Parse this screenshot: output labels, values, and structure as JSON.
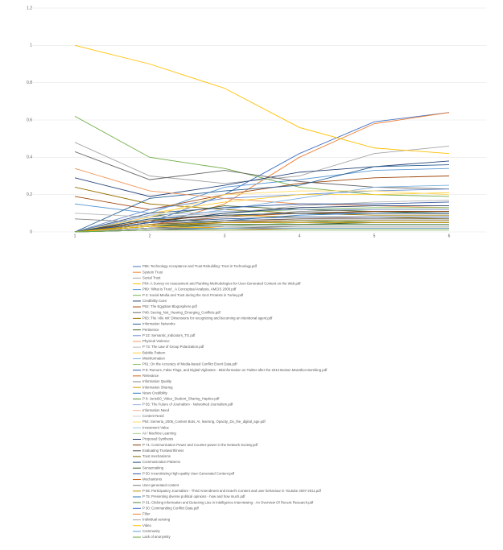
{
  "chart_data": {
    "type": "line",
    "grid": true,
    "categories": [
      "1",
      "2",
      "3",
      "4",
      "5",
      "6"
    ],
    "ylim": [
      0,
      1.2
    ],
    "yticks": [
      0,
      0.2,
      0.4,
      0.6,
      0.8,
      1,
      1.2
    ],
    "legend": "bottom",
    "series": [
      {
        "name": "P86: Technology Acceptance and Trust Rebuilding: Trust in Technology.pdf",
        "color": "#4472c4",
        "values": [
          0,
          0.05,
          0.2,
          0.42,
          0.59,
          0.64
        ]
      },
      {
        "name": "System Trust",
        "color": "#ed7d31",
        "values": [
          0,
          0.03,
          0.15,
          0.4,
          0.58,
          0.64
        ]
      },
      {
        "name": "Social Trust",
        "color": "#a5a5a5",
        "values": [
          0.48,
          0.3,
          0.26,
          0.3,
          0.42,
          0.46
        ]
      },
      {
        "name": "P64: A Survey on Assessment and Ranking Methodologies for User-Generated Content on the Web.pdf",
        "color": "#ffc000",
        "values": [
          1,
          0.9,
          0.77,
          0.56,
          0.45,
          0.42
        ]
      },
      {
        "name": "P89: 'What is Trust'_ A Conceptual Analysis, AMCIS 2000.pdf",
        "color": "#5b9bd5",
        "values": [
          0.15,
          0.1,
          0.24,
          0.28,
          0.33,
          0.34
        ]
      },
      {
        "name": "P 3: Social Media and Trust during the Gezi Protests in Turkey.pdf",
        "color": "#70ad47",
        "values": [
          0.62,
          0.4,
          0.34,
          0.24,
          0.2,
          0.19
        ]
      },
      {
        "name": "Credibility Cues",
        "color": "#264478",
        "values": [
          0.29,
          0.19,
          0.25,
          0.32,
          0.35,
          0.38
        ]
      },
      {
        "name": "P52: The Egyptian Blogosphere.pdf",
        "color": "#9e480e",
        "values": [
          0.19,
          0.12,
          0.2,
          0.26,
          0.29,
          0.3
        ]
      },
      {
        "name": "P48: Seeing_Not_Hearing_Emerging_Conflicts.pdf",
        "color": "#636363",
        "values": [
          0.43,
          0.28,
          0.33,
          0.27,
          0.24,
          0.23
        ]
      },
      {
        "name": "P83: The 'Alle mit' Dimensions for recognizing and becoming an intentional agent.pdf",
        "color": "#997300",
        "values": [
          0.24,
          0.15,
          0.12,
          0.1,
          0.09,
          0.09
        ]
      },
      {
        "name": "Information Networks",
        "color": "#255e91",
        "values": [
          0,
          0.18,
          0.22,
          0.25,
          0.35,
          0.36
        ]
      },
      {
        "name": "Pertinence",
        "color": "#43682b",
        "values": [
          0,
          0.08,
          0.14,
          0.12,
          0.11,
          0.1
        ]
      },
      {
        "name": "P 22: Semantic_indicators_TG.pdf",
        "color": "#698ed0",
        "values": [
          0,
          0.12,
          0.18,
          0.2,
          0.22,
          0.23
        ]
      },
      {
        "name": "Physical Violence",
        "color": "#f1975a",
        "values": [
          0.34,
          0.22,
          0.18,
          0.15,
          0.14,
          0.13
        ]
      },
      {
        "name": "P 73: The Law of Group Polarization.pdf",
        "color": "#b7b7b7",
        "values": [
          0.1,
          0.08,
          0.1,
          0.14,
          0.16,
          0.17
        ]
      },
      {
        "name": "Bubble Pattern",
        "color": "#ffcd33",
        "values": [
          0,
          0.1,
          0.16,
          0.2,
          0.2,
          0.21
        ]
      },
      {
        "name": "Misinformation",
        "color": "#7cafdd",
        "values": [
          0,
          0.06,
          0.12,
          0.18,
          0.24,
          0.25
        ]
      },
      {
        "name": "P61: On the Accuracy of Media-based Conflict Event Data.pdf",
        "color": "#8cc168",
        "values": [
          0,
          0.05,
          0.1,
          0.12,
          0.13,
          0.13
        ]
      },
      {
        "name": "P 8: Rumors, False Flags, and Digital Vigilantes - Misinformation on Twitter after the 2013 Boston Marathon Bombing.pdf",
        "color": "#335aa1",
        "values": [
          0,
          0.1,
          0.13,
          0.15,
          0.15,
          0.16
        ]
      },
      {
        "name": "Relevance",
        "color": "#d26012",
        "values": [
          0,
          0.04,
          0.08,
          0.1,
          0.11,
          0.11
        ]
      },
      {
        "name": "Information Quality",
        "color": "#848484",
        "values": [
          0.07,
          0.05,
          0.08,
          0.11,
          0.12,
          0.12
        ]
      },
      {
        "name": "Information Sharing",
        "color": "#cc9a00",
        "values": [
          0,
          0.06,
          0.09,
          0.08,
          0.08,
          0.07
        ]
      },
      {
        "name": "News Credibility",
        "color": "#327dc2",
        "values": [
          0,
          0.03,
          0.06,
          0.09,
          0.1,
          0.1
        ]
      },
      {
        "name": "P 9: Jurist20_Video_Student_Sharing_Haptics.pdf",
        "color": "#5a8a39",
        "values": [
          0,
          0.07,
          0.05,
          0.06,
          0.05,
          0.05
        ]
      },
      {
        "name": "P 55: The Future of Journalism - Networked Journalism.pdf",
        "color": "#8faadc",
        "values": [
          0,
          0.09,
          0.11,
          0.12,
          0.12,
          0.12
        ]
      },
      {
        "name": "Information Need",
        "color": "#f4b183",
        "values": [
          0,
          0.02,
          0.05,
          0.07,
          0.08,
          0.08
        ]
      },
      {
        "name": "Content Need",
        "color": "#c9c9c9",
        "values": [
          0,
          0.04,
          0.06,
          0.05,
          0.05,
          0.05
        ]
      },
      {
        "name": "P54: Semeria_2005_Content Bots, AI, learning, Opacity_Do_the_digital_age.pdf",
        "color": "#ffd966",
        "values": [
          0,
          0.08,
          0.2,
          0.22,
          0.22,
          0.2
        ]
      },
      {
        "name": "Investment Value",
        "color": "#9dc3e6",
        "values": [
          0,
          0.03,
          0.04,
          0.04,
          0.04,
          0.04
        ]
      },
      {
        "name": "AI / Machine Learning",
        "color": "#a9d18e",
        "values": [
          0,
          0.02,
          0.03,
          0.05,
          0.06,
          0.06
        ]
      },
      {
        "name": "Proposed Synthesis",
        "color": "#203864",
        "values": [
          0,
          0.05,
          0.1,
          0.13,
          0.14,
          0.14
        ]
      },
      {
        "name": "P 71: Communication Power and Counter-power in the Network Society.pdf",
        "color": "#843c0c",
        "values": [
          0,
          0.06,
          0.09,
          0.1,
          0.11,
          0.11
        ]
      },
      {
        "name": "Evaluating Trustworthiness",
        "color": "#525252",
        "values": [
          0,
          0.04,
          0.06,
          0.07,
          0.07,
          0.07
        ]
      },
      {
        "name": "Trust mechanisms",
        "color": "#7f6000",
        "values": [
          0,
          0.03,
          0.05,
          0.06,
          0.06,
          0.06
        ]
      },
      {
        "name": "Communication Patterns",
        "color": "#1f4e79",
        "values": [
          0,
          0.07,
          0.09,
          0.1,
          0.1,
          0.1
        ]
      },
      {
        "name": "Sensemaking",
        "color": "#385723",
        "values": [
          0,
          0.02,
          0.04,
          0.04,
          0.05,
          0.05
        ]
      },
      {
        "name": "P 50: Incentivizing High-quality User-Generated Content.pdf",
        "color": "#2f5597",
        "values": [
          0,
          0.05,
          0.07,
          0.08,
          0.08,
          0.08
        ]
      },
      {
        "name": "Mechanisms",
        "color": "#c55a11",
        "values": [
          0,
          0.01,
          0.03,
          0.03,
          0.03,
          0.03
        ]
      },
      {
        "name": "User-generated content",
        "color": "#7b7b7b",
        "values": [
          0,
          0.02,
          0.02,
          0.03,
          0.03,
          0.03
        ]
      },
      {
        "name": "P 65: Participatory Journalism - Third Amendment and Israel's Content and user behaviour in Youtube 2007-2011.pdf",
        "color": "#bf9000",
        "values": [
          0,
          0.04,
          0.05,
          0.05,
          0.05,
          0.05
        ]
      },
      {
        "name": "P 75: Presenting diverse political opinions - how and how much.pdf",
        "color": "#2e75b6",
        "values": [
          0,
          0.01,
          0.02,
          0.02,
          0.02,
          0.02
        ]
      },
      {
        "name": "P 31: Clicking information and Detecting Lies in Intelligence Interviewing - An Overview Of Recent Research.pdf",
        "color": "#548235",
        "values": [
          0,
          0.03,
          0.04,
          0.04,
          0.04,
          0.04
        ]
      },
      {
        "name": "P 30: Commanding Conflict Data.pdf",
        "color": "#4472c4",
        "values": [
          0,
          0.02,
          0.03,
          0.03,
          0.03,
          0.03
        ]
      },
      {
        "name": "Filter",
        "color": "#ed7d31",
        "values": [
          0,
          0.01,
          0.01,
          0.02,
          0.02,
          0.02
        ]
      },
      {
        "name": "Individual sensing",
        "color": "#a5a5a5",
        "values": [
          0,
          0.02,
          0.03,
          0.03,
          0.03,
          0.03
        ]
      },
      {
        "name": "Video",
        "color": "#ffc000",
        "values": [
          0,
          0.03,
          0.02,
          0.02,
          0.02,
          0.02
        ]
      },
      {
        "name": "Community",
        "color": "#5b9bd5",
        "values": [
          0,
          0.01,
          0.02,
          0.02,
          0.02,
          0.02
        ]
      },
      {
        "name": "Lack of anonymity",
        "color": "#70ad47",
        "values": [
          0,
          0.01,
          0.01,
          0.01,
          0.01,
          0.01
        ]
      }
    ]
  }
}
